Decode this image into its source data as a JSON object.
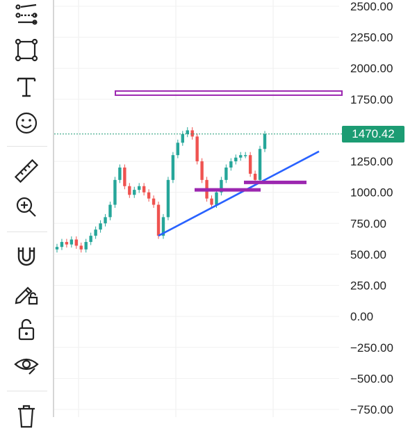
{
  "toolbar": {
    "tools": [
      {
        "name": "trend-line-tools-icon"
      },
      {
        "name": "rectangle-shape-icon"
      },
      {
        "name": "text-tool-icon"
      },
      {
        "name": "emoji-sticker-icon"
      },
      {
        "name": "ruler-measure-icon"
      },
      {
        "name": "zoom-in-icon"
      },
      {
        "name": "magnet-snap-icon"
      },
      {
        "name": "lock-drawings-icon"
      },
      {
        "name": "lock-all-icon"
      },
      {
        "name": "hide-drawings-eye-icon"
      },
      {
        "name": "trash-icon"
      }
    ]
  },
  "colors": {
    "up": "#26a69a",
    "down": "#ef5350",
    "trendline": "#2962ff",
    "horizontal_levels": "#9c27b0",
    "last_price_bg": "#1c9c73"
  },
  "price_axis": {
    "ticks": [
      "2500.00",
      "2250.00",
      "2000.00",
      "1750.00",
      "1250.00",
      "1000.00",
      "750.00",
      "500.00",
      "250.00",
      "0.00",
      "−250.00",
      "−500.00",
      "−750.00"
    ]
  },
  "last_price": "1470.42",
  "chart_data": {
    "type": "candlestick",
    "y_axis_range": [
      -800,
      2550
    ],
    "last_price": 1470.42,
    "closes_approx": [
      560,
      600,
      580,
      620,
      570,
      540,
      600,
      650,
      700,
      750,
      800,
      900,
      1100,
      1200,
      1050,
      980,
      1020,
      1050,
      1000,
      950,
      900,
      650,
      800,
      1100,
      1300,
      1400,
      1470,
      1500,
      1450,
      1250,
      1100,
      950,
      900,
      1000,
      1100,
      1200,
      1250,
      1280,
      1300,
      1300,
      1150,
      1100,
      1350,
      1470
    ],
    "horizontal_levels": [
      1800,
      1020,
      1080
    ],
    "trendline": {
      "from": 650,
      "to": 1330
    }
  }
}
